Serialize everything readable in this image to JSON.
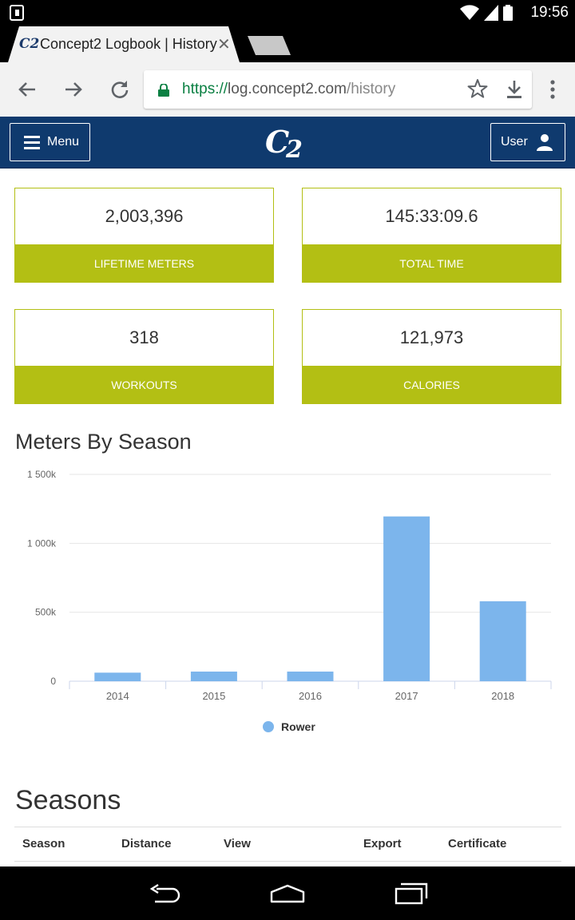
{
  "status_bar": {
    "time": "19:56"
  },
  "browser": {
    "tab_title": "Concept2 Logbook | History",
    "url_scheme": "https://",
    "url_host": "log.concept2.com",
    "url_path": "/history"
  },
  "header": {
    "menu_label": "Menu",
    "user_label": "User"
  },
  "stats": [
    {
      "value": "2,003,396",
      "label": "LIFETIME METERS"
    },
    {
      "value": "145:33:09.6",
      "label": "TOTAL TIME"
    },
    {
      "value": "318",
      "label": "WORKOUTS"
    },
    {
      "value": "121,973",
      "label": "CALORIES"
    }
  ],
  "chart_section_title": "Meters By Season",
  "seasons_title": "Seasons",
  "table": {
    "columns": [
      "Season",
      "Distance",
      "View",
      "Export",
      "Certificate"
    ]
  },
  "colors": {
    "brand": "#0f3a6e",
    "accent": "#b3bf14",
    "bar": "#7cb5ec"
  },
  "chart_data": {
    "type": "bar",
    "categories": [
      "2014",
      "2015",
      "2016",
      "2017",
      "2018"
    ],
    "series": [
      {
        "name": "Rower",
        "values": [
          62000,
          70000,
          70000,
          1195000,
          580000
        ]
      }
    ],
    "ylim": [
      0,
      1500000
    ],
    "yticks": [
      0,
      500000,
      1000000,
      1500000
    ],
    "ytick_labels": [
      "0",
      "500k",
      "1 000k",
      "1 500k"
    ],
    "legend_position": "bottom-center",
    "grid": true
  }
}
